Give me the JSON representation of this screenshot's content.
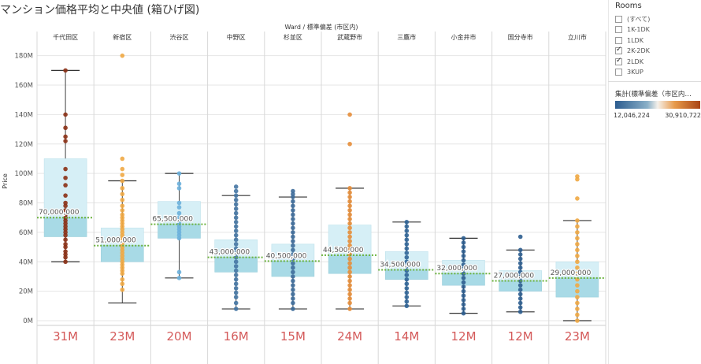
{
  "title": "マンション価格平均と中央値 (箱ひげ図)",
  "filter": {
    "title": "Rooms",
    "options": [
      {
        "label": "(すべて)",
        "checked": false
      },
      {
        "label": "1K-1DK",
        "checked": false
      },
      {
        "label": "1LDK",
        "checked": false
      },
      {
        "label": "2K-2DK",
        "checked": true
      },
      {
        "label": "2LDK",
        "checked": true
      },
      {
        "label": "3KUP",
        "checked": false
      }
    ]
  },
  "legend": {
    "title": "集計(標準偏差（市区内…",
    "min_label": "12,046,224",
    "max_label": "30,910,722"
  },
  "colors": {
    "box_fill": "#a8dae6",
    "box_upper": "#d6eff6",
    "median_line": "#6ab23d",
    "std_text": "#d45a5a",
    "grid": "#e6e6e6"
  },
  "chart_data": {
    "type": "box",
    "column_header": "Ward / 標準偏差 (市区内)",
    "ylabel": "Price",
    "ylim": [
      0,
      190000000
    ],
    "yticks": [
      0,
      20000000,
      40000000,
      60000000,
      80000000,
      100000000,
      120000000,
      140000000,
      160000000,
      180000000
    ],
    "ytick_labels": [
      "0M",
      "20M",
      "40M",
      "60M",
      "80M",
      "100M",
      "120M",
      "140M",
      "160M",
      "180M"
    ],
    "wards": [
      {
        "name": "千代田区",
        "std_label": "31M",
        "color": "#8b3015",
        "whisker_low": 40000000,
        "q1": 57000000,
        "median_line": 70000000,
        "median_label": "70,000,000",
        "q3": 110000000,
        "whisker_high": 170000000,
        "points": [
          170000000,
          140000000,
          131000000,
          125000000,
          122000000,
          103000000,
          97000000,
          92000000,
          85000000,
          80000000,
          78000000,
          75000000,
          72000000,
          70000000,
          68000000,
          66000000,
          64000000,
          62000000,
          60000000,
          58000000,
          55000000,
          52000000,
          50000000,
          47000000,
          45000000,
          43000000,
          40000000
        ]
      },
      {
        "name": "新宿区",
        "std_label": "23M",
        "color": "#f0a844",
        "whisker_low": 12000000,
        "q1": 40000000,
        "median_line": 51000000,
        "median_label": "51,000,000",
        "q3": 63000000,
        "whisker_high": 95000000,
        "points": [
          180000000,
          110000000,
          103000000,
          99000000,
          95000000,
          90000000,
          86000000,
          82000000,
          78000000,
          75000000,
          72000000,
          70000000,
          68000000,
          66000000,
          64000000,
          62000000,
          60000000,
          58000000,
          56000000,
          54000000,
          52000000,
          50000000,
          48000000,
          46000000,
          44000000,
          42000000,
          40000000,
          38000000,
          36000000,
          34000000,
          32000000,
          28000000,
          25000000,
          21000000
        ]
      },
      {
        "name": "渋谷区",
        "std_label": "20M",
        "color": "#6bb0dc",
        "whisker_low": 29000000,
        "q1": 56000000,
        "median_line": 65500000,
        "median_label": "65,500,000",
        "q3": 81000000,
        "whisker_high": 100000000,
        "points": [
          100000000,
          93000000,
          90000000,
          80000000,
          77000000,
          73000000,
          70000000,
          68000000,
          66000000,
          64000000,
          62000000,
          60000000,
          58000000,
          56000000,
          33000000,
          29000000
        ]
      },
      {
        "name": "中野区",
        "std_label": "16M",
        "color": "#4576a3",
        "whisker_low": 8000000,
        "q1": 33000000,
        "median_line": 43000000,
        "median_label": "43,000,000",
        "q3": 55000000,
        "whisker_high": 85000000,
        "points": [
          91000000,
          88000000,
          85000000,
          82000000,
          79000000,
          76000000,
          73000000,
          70000000,
          67000000,
          64000000,
          61000000,
          58000000,
          55000000,
          52000000,
          49000000,
          46000000,
          43000000,
          40000000,
          37000000,
          34000000,
          31000000,
          28000000,
          25000000,
          22000000,
          19000000,
          16000000,
          12000000,
          8000000
        ]
      },
      {
        "name": "杉並区",
        "std_label": "15M",
        "color": "#3d6c9a",
        "whisker_low": 8000000,
        "q1": 30000000,
        "median_line": 40500000,
        "median_label": "40,500,000",
        "q3": 52000000,
        "whisker_high": 84000000,
        "points": [
          88000000,
          86000000,
          84000000,
          81000000,
          78000000,
          75000000,
          72000000,
          69000000,
          66000000,
          63000000,
          60000000,
          57000000,
          54000000,
          51000000,
          48000000,
          45000000,
          42000000,
          39000000,
          36000000,
          33000000,
          30000000,
          27000000,
          24000000,
          21000000,
          18000000,
          15000000,
          12000000,
          8000000
        ]
      },
      {
        "name": "武蔵野市",
        "std_label": "24M",
        "color": "#e68d38",
        "whisker_low": 8000000,
        "q1": 32000000,
        "median_line": 44500000,
        "median_label": "44,500,000",
        "q3": 65000000,
        "whisker_high": 90000000,
        "points": [
          140000000,
          120000000,
          90000000,
          87000000,
          84000000,
          81000000,
          78000000,
          75000000,
          72000000,
          69000000,
          66000000,
          63000000,
          60000000,
          57000000,
          54000000,
          51000000,
          48000000,
          45000000,
          42000000,
          39000000,
          36000000,
          33000000,
          30000000,
          27000000,
          24000000,
          21000000,
          18000000,
          15000000,
          12000000,
          8000000
        ]
      },
      {
        "name": "三鷹市",
        "std_label": "14M",
        "color": "#2f6497",
        "whisker_low": 10000000,
        "q1": 28000000,
        "median_line": 34500000,
        "median_label": "34,500,000",
        "q3": 47000000,
        "whisker_high": 67000000,
        "points": [
          67000000,
          64000000,
          61000000,
          58000000,
          55000000,
          52000000,
          49000000,
          46000000,
          43000000,
          40000000,
          37000000,
          34000000,
          31000000,
          28000000,
          25000000,
          22000000,
          19000000,
          16000000,
          13000000,
          10000000
        ]
      },
      {
        "name": "小金井市",
        "std_label": "12M",
        "color": "#2c5d8f",
        "whisker_low": 5000000,
        "q1": 24000000,
        "median_line": 32000000,
        "median_label": "32,000,000",
        "q3": 41000000,
        "whisker_high": 56000000,
        "points": [
          56000000,
          53000000,
          50000000,
          47000000,
          44000000,
          41000000,
          38000000,
          35000000,
          32000000,
          29000000,
          26000000,
          23000000,
          20000000,
          17000000,
          14000000,
          11000000,
          8000000,
          5000000
        ]
      },
      {
        "name": "国分寺市",
        "std_label": "12M",
        "color": "#2c5d8f",
        "whisker_low": 6000000,
        "q1": 20000000,
        "median_line": 27000000,
        "median_label": "27,000,000",
        "q3": 34000000,
        "whisker_high": 48000000,
        "points": [
          57000000,
          48000000,
          45000000,
          42000000,
          39000000,
          36000000,
          33000000,
          30000000,
          27000000,
          24000000,
          21000000,
          18000000,
          15000000,
          12000000,
          9000000,
          6000000
        ]
      },
      {
        "name": "立川市",
        "std_label": "23M",
        "color": "#f0a844",
        "whisker_low": 0,
        "q1": 16000000,
        "median_line": 29000000,
        "median_label": "29,000,000",
        "q3": 40000000,
        "whisker_high": 68000000,
        "points": [
          98000000,
          96000000,
          83000000,
          68000000,
          64000000,
          60000000,
          56000000,
          52000000,
          48000000,
          44000000,
          40000000,
          36000000,
          32000000,
          28000000,
          24000000,
          20000000,
          16000000,
          12000000,
          8000000,
          4000000,
          0
        ]
      }
    ]
  }
}
